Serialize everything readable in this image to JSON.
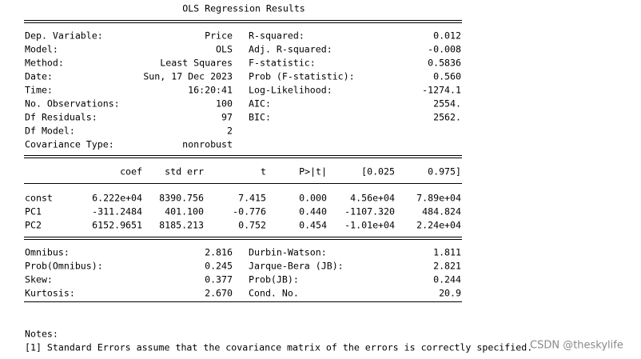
{
  "title": "OLS Regression Results",
  "model_info": {
    "left": [
      [
        "Dep. Variable:",
        "Price"
      ],
      [
        "Model:",
        "OLS"
      ],
      [
        "Method:",
        "Least Squares"
      ],
      [
        "Date:",
        "Sun, 17 Dec 2023"
      ],
      [
        "Time:",
        "16:20:41"
      ],
      [
        "No. Observations:",
        "100"
      ],
      [
        "Df Residuals:",
        "97"
      ],
      [
        "Df Model:",
        "2"
      ],
      [
        "Covariance Type:",
        "nonrobust"
      ]
    ],
    "right": [
      [
        "R-squared:",
        "0.012"
      ],
      [
        "Adj. R-squared:",
        "-0.008"
      ],
      [
        "F-statistic:",
        "0.5836"
      ],
      [
        "Prob (F-statistic):",
        "0.560"
      ],
      [
        "Log-Likelihood:",
        "-1274.1"
      ],
      [
        "AIC:",
        "2554."
      ],
      [
        "BIC:",
        "2562."
      ]
    ]
  },
  "coef_table": {
    "columns": [
      "coef",
      "std err",
      "t",
      "P>|t|",
      "[0.025",
      "0.975]"
    ],
    "rows": [
      [
        "const",
        "6.222e+04",
        "8390.756",
        "7.415",
        "0.000",
        "4.56e+04",
        "7.89e+04"
      ],
      [
        "PC1",
        "-311.2484",
        "401.100",
        "-0.776",
        "0.440",
        "-1107.320",
        "484.824"
      ],
      [
        "PC2",
        "6152.9651",
        "8185.213",
        "0.752",
        "0.454",
        "-1.01e+04",
        "2.24e+04"
      ]
    ]
  },
  "diagnostics": {
    "left": [
      [
        "Omnibus:",
        "2.816"
      ],
      [
        "Prob(Omnibus):",
        "0.245"
      ],
      [
        "Skew:",
        "0.377"
      ],
      [
        "Kurtosis:",
        "2.670"
      ]
    ],
    "right": [
      [
        "Durbin-Watson:",
        "1.811"
      ],
      [
        "Jarque-Bera (JB):",
        "2.821"
      ],
      [
        "Prob(JB):",
        "0.244"
      ],
      [
        "Cond. No.",
        "20.9"
      ]
    ]
  },
  "notes": {
    "heading": "Notes:",
    "items": [
      "[1] Standard Errors assume that the covariance matrix of the errors is correctly specified."
    ]
  },
  "watermark": "CSDN @theskylife"
}
